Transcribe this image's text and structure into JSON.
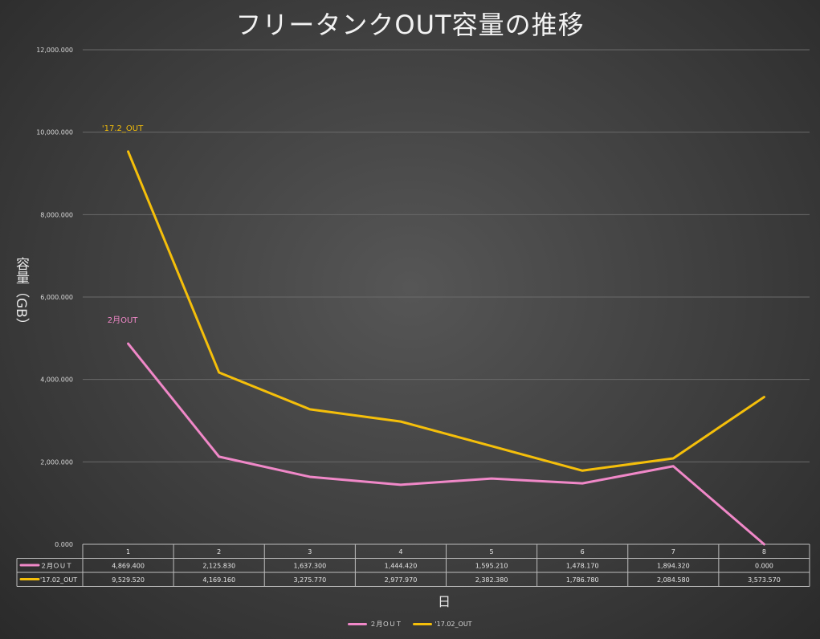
{
  "chart_data": {
    "type": "line",
    "title": "フリータンクOUT容量の推移",
    "xlabel": "日",
    "ylabel": "容量（GB）",
    "categories": [
      "1",
      "2",
      "3",
      "4",
      "5",
      "6",
      "7",
      "8"
    ],
    "ylim": [
      0,
      12000
    ],
    "yticks": [
      0,
      2000,
      4000,
      6000,
      8000,
      10000,
      12000
    ],
    "ytick_labels": [
      "0.000",
      "2,000.000",
      "4,000.000",
      "6,000.000",
      "8,000.000",
      "10,000.000",
      "12,000.000"
    ],
    "grid": true,
    "legend": "bottom",
    "series": [
      {
        "name": "2月OUT",
        "table_name": "２月ＯＵＴ",
        "color": "#f088c8",
        "values": [
          4869.4,
          2125.83,
          1637.3,
          1444.42,
          1595.21,
          1478.17,
          1894.32,
          0.0
        ],
        "value_labels": [
          "4,869.400",
          "2,125.830",
          "1,637.300",
          "1,444.420",
          "1,595.210",
          "1,478.170",
          "1,894.320",
          "0.000"
        ]
      },
      {
        "name": "'17.02_OUT",
        "table_name": "'17.02_OUT",
        "color": "#f5bf0a",
        "values": [
          9529.52,
          4169.16,
          3275.77,
          2977.97,
          2382.38,
          1786.78,
          2084.58,
          3573.57
        ],
        "value_labels": [
          "9,529.520",
          "4,169.160",
          "3,275.770",
          "2,977.970",
          "2,382.380",
          "1,786.780",
          "2,084.580",
          "3,573.570"
        ]
      }
    ],
    "annotations": [
      {
        "text": "'17.2_OUT",
        "series": 1,
        "color": "#f5bf0a"
      },
      {
        "text": "2月OUT",
        "series": 0,
        "color": "#f088c8"
      }
    ]
  }
}
